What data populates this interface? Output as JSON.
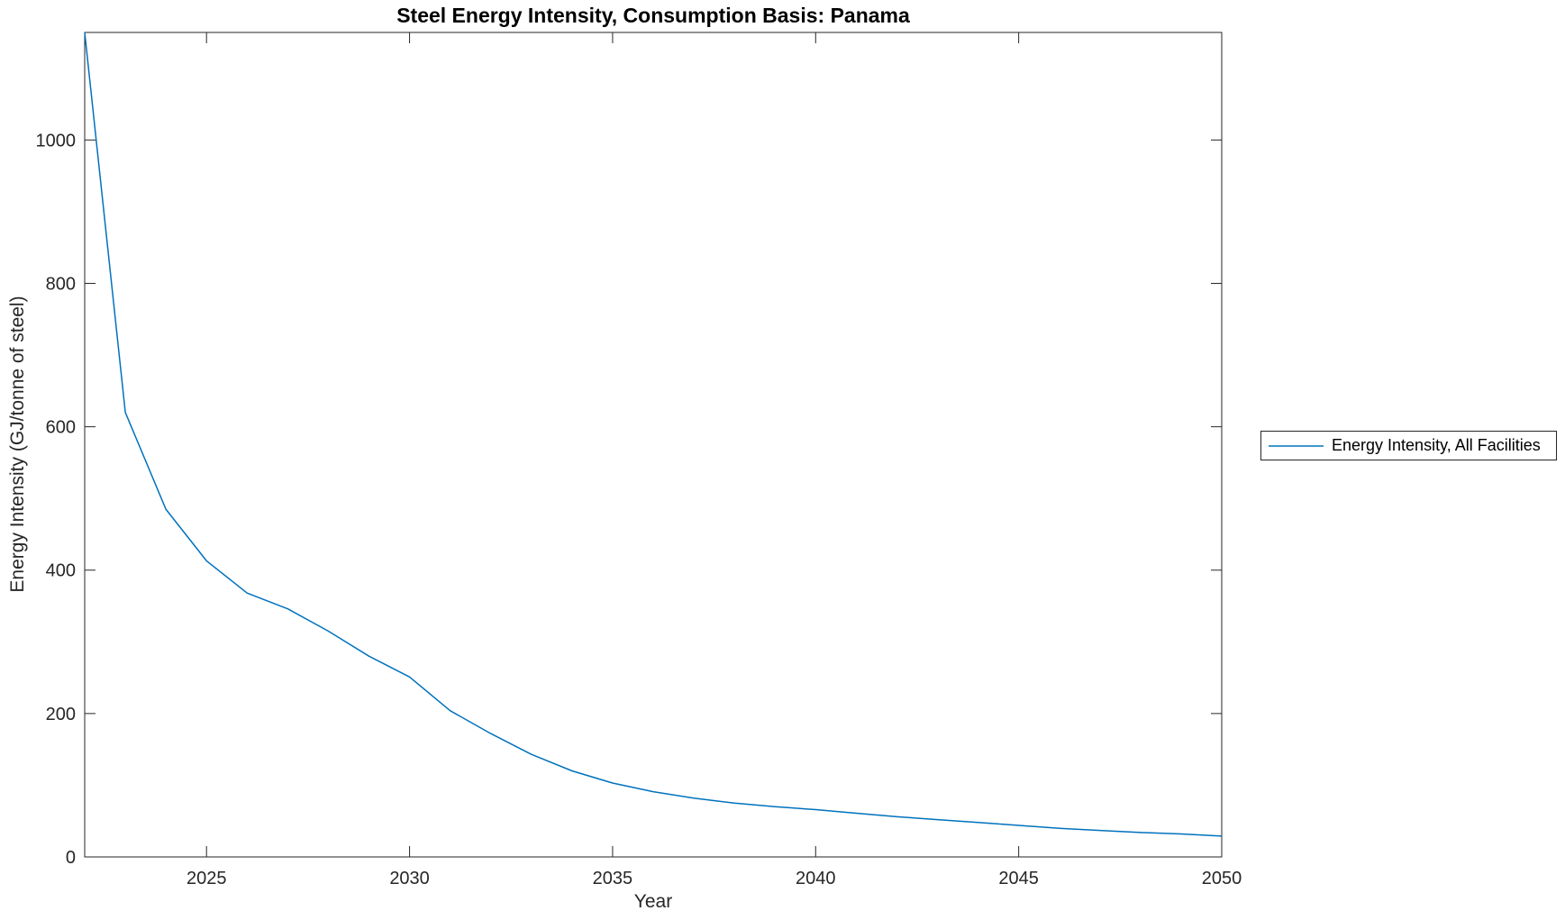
{
  "chart_data": {
    "type": "line",
    "title": "Steel Energy Intensity, Consumption Basis: Panama",
    "xlabel": "Year",
    "ylabel": "Energy Intensity (GJ/tonne of steel)",
    "xlim": [
      2022,
      2050
    ],
    "ylim": [
      0,
      1150
    ],
    "x_ticks": [
      2025,
      2030,
      2035,
      2040,
      2045,
      2050
    ],
    "y_ticks": [
      0,
      200,
      400,
      600,
      800,
      1000
    ],
    "grid": false,
    "legend_position": "right-outside",
    "series": [
      {
        "name": "Energy Intensity, All Facilities",
        "color": "#0072BD",
        "x": [
          2022,
          2023,
          2024,
          2025,
          2026,
          2027,
          2028,
          2029,
          2030,
          2031,
          2032,
          2033,
          2034,
          2035,
          2036,
          2037,
          2038,
          2039,
          2040,
          2041,
          2042,
          2043,
          2044,
          2045,
          2046,
          2047,
          2048,
          2049,
          2050
        ],
        "values": [
          1150,
          620,
          485,
          413,
          368,
          346,
          315,
          280,
          251,
          204,
          172,
          143,
          120,
          103,
          91,
          82,
          75,
          70,
          66,
          61,
          56,
          52,
          48,
          44,
          40,
          37,
          34,
          32,
          29
        ]
      }
    ]
  },
  "legend": {
    "items": [
      {
        "label": "Energy Intensity, All Facilities",
        "color": "#0072BD"
      }
    ]
  },
  "colors": {
    "line": "#0072BD",
    "axis": "#262626",
    "tick_label": "#262626",
    "title": "#000000",
    "background": "#ffffff"
  }
}
